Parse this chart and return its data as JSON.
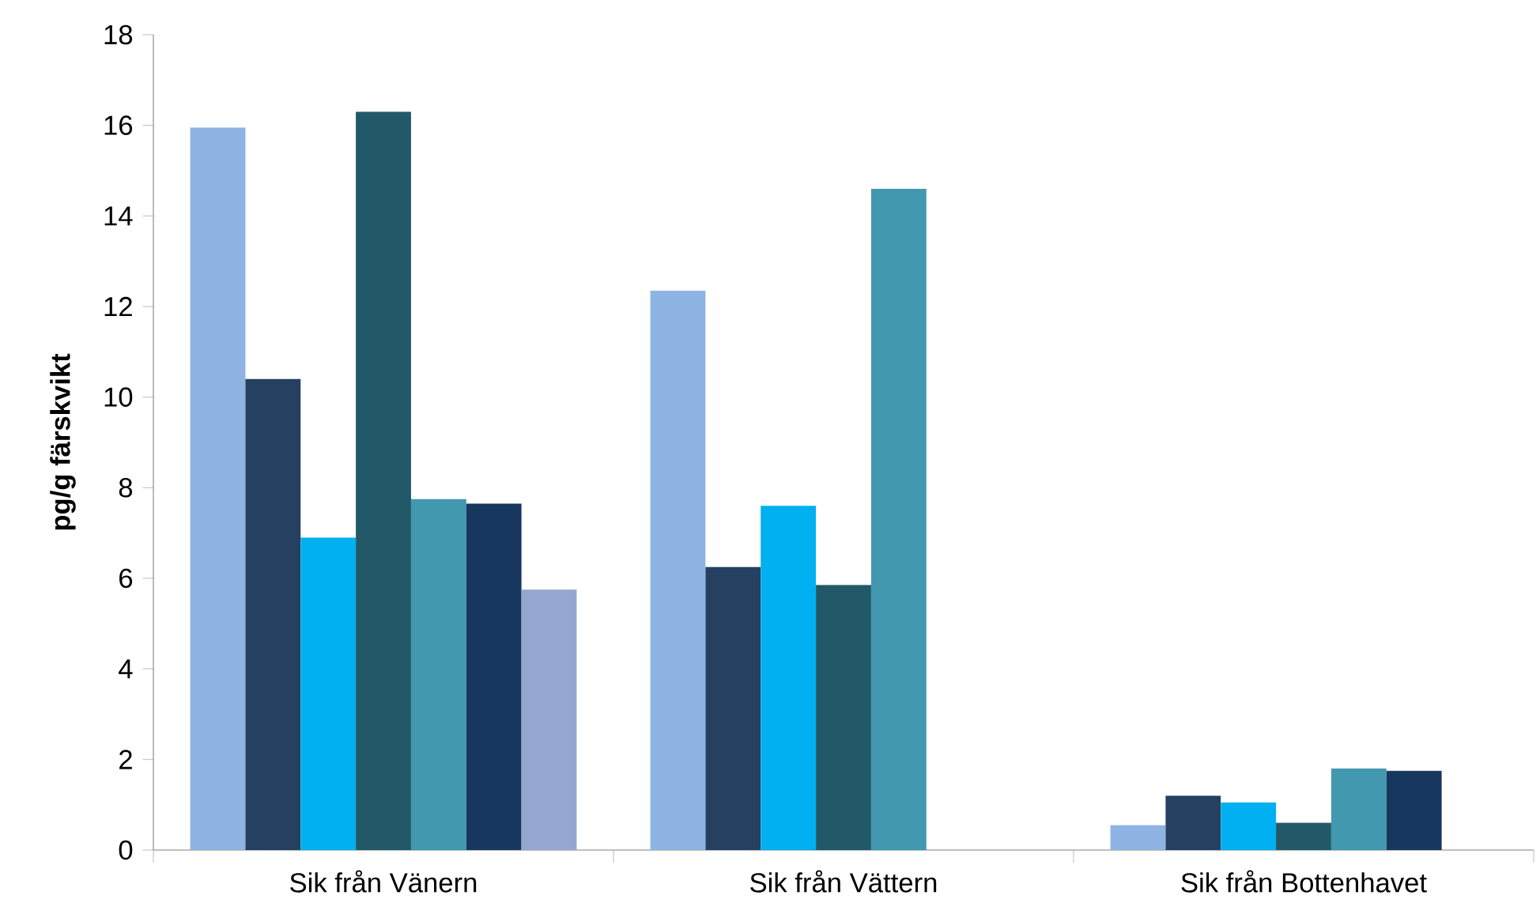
{
  "chart_data": {
    "type": "bar",
    "ylabel": "pg/g färskvikt",
    "categories": [
      "Sik från Vänern",
      "Sik från Vättern",
      "Sik från Bottenhavet"
    ],
    "series": [
      {
        "color": "#8eb4e3",
        "values": [
          15.95,
          12.35,
          0.55
        ]
      },
      {
        "color": "#254061",
        "values": [
          10.4,
          6.25,
          1.2
        ]
      },
      {
        "color": "#00b0f0",
        "values": [
          6.9,
          7.6,
          1.05
        ]
      },
      {
        "color": "#215968",
        "values": [
          16.3,
          5.85,
          0.6
        ]
      },
      {
        "color": "#4198af",
        "values": [
          7.75,
          14.6,
          1.8
        ]
      },
      {
        "color": "#17375e",
        "values": [
          7.65,
          null,
          1.75
        ]
      },
      {
        "color": "#95a7d0",
        "values": [
          5.75,
          null,
          null
        ]
      }
    ],
    "ylim": [
      0,
      18
    ],
    "yticks": [
      0,
      2,
      4,
      6,
      8,
      10,
      12,
      14,
      16,
      18
    ],
    "grid": false
  }
}
